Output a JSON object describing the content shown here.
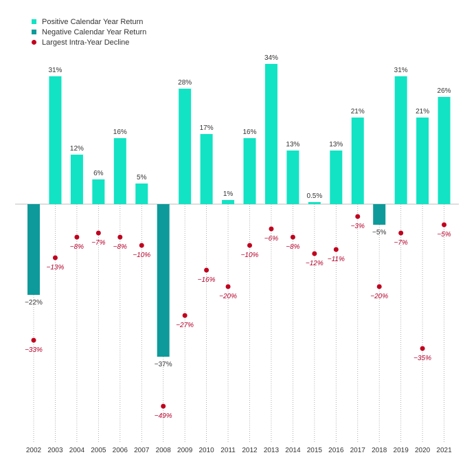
{
  "colors": {
    "positive": "#12e3c4",
    "negative": "#0e9a9a",
    "decline": "#c0001e",
    "guide": "#9a9a9a"
  },
  "legend": {
    "positive": "Positive Calendar Year Return",
    "negative": "Negative Calendar Year Return",
    "decline": "Largest Intra-Year Decline"
  },
  "chart_data": {
    "type": "bar",
    "title": "",
    "xlabel": "",
    "ylabel": "",
    "ylim": [
      -60,
      36
    ],
    "categories": [
      "2002",
      "2003",
      "2004",
      "2005",
      "2006",
      "2007",
      "2008",
      "2009",
      "2010",
      "2011",
      "2012",
      "2013",
      "2014",
      "2015",
      "2016",
      "2017",
      "2018",
      "2019",
      "2020",
      "2021"
    ],
    "series": [
      {
        "name": "Calendar Year Return",
        "values": [
          -22,
          31,
          12,
          6,
          16,
          5,
          -37,
          28,
          17,
          1,
          16,
          34,
          13,
          0.5,
          13,
          21,
          -5,
          31,
          21,
          26
        ],
        "labels": [
          "−22%",
          "31%",
          "12%",
          "6%",
          "16%",
          "5%",
          "−37%",
          "28%",
          "17%",
          "1%",
          "16%",
          "34%",
          "13%",
          "0.5%",
          "13%",
          "21%",
          "−5%",
          "31%",
          "21%",
          "26%"
        ]
      },
      {
        "name": "Largest Intra-Year Decline",
        "values": [
          -33,
          -13,
          -8,
          -7,
          -8,
          -10,
          -49,
          -27,
          -16,
          -20,
          -10,
          -6,
          -8,
          -12,
          -11,
          -3,
          -20,
          -7,
          -35,
          -5
        ],
        "labels": [
          "−33%",
          "−13%",
          "−8%",
          "−7%",
          "−8%",
          "−10%",
          "−49%",
          "−27%",
          "−16%",
          "−20%",
          "−10%",
          "−6%",
          "−8%",
          "−12%",
          "−11%",
          "−3%",
          "−20%",
          "−7%",
          "−35%",
          "−5%"
        ]
      }
    ]
  }
}
